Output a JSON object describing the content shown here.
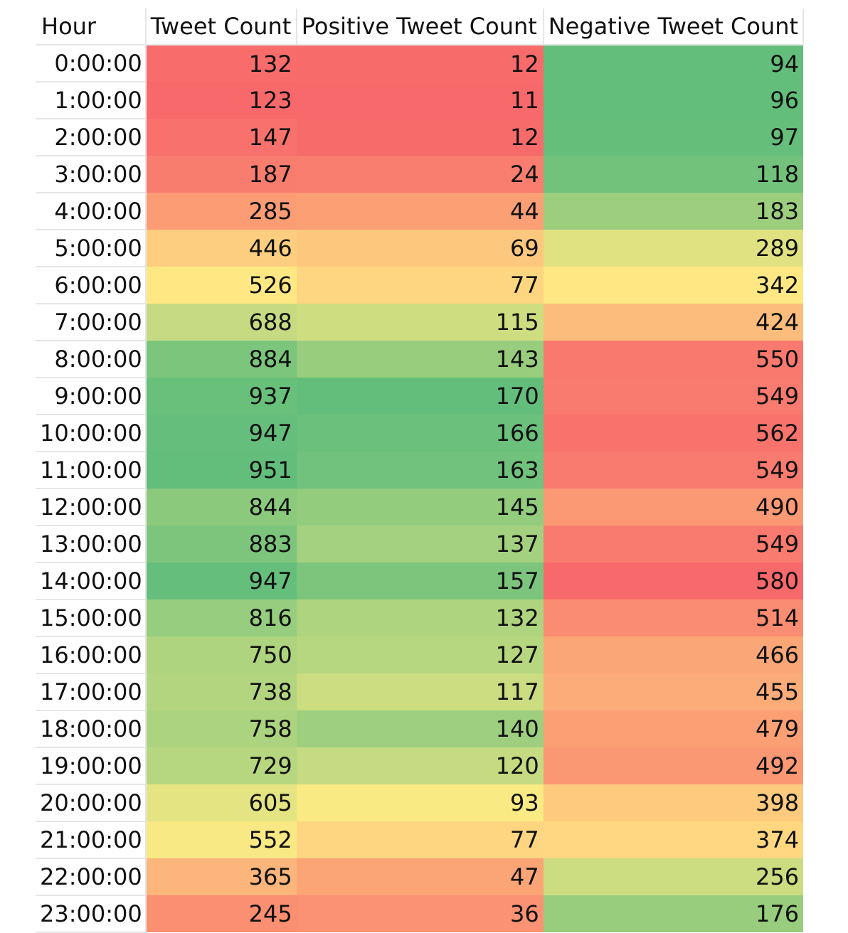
{
  "chart_data": {
    "type": "table",
    "columns": [
      "Hour",
      "Tweet Count",
      "Positive Tweet Count",
      "Negative Tweet Count"
    ],
    "color_scale": {
      "low": "#f8696b",
      "mid": "#ffeb84",
      "high": "#63be7b",
      "inverted_columns": [
        "Negative Tweet Count"
      ]
    },
    "rows": [
      [
        "0:00:00",
        132,
        12,
        94
      ],
      [
        "1:00:00",
        123,
        11,
        96
      ],
      [
        "2:00:00",
        147,
        12,
        97
      ],
      [
        "3:00:00",
        187,
        24,
        118
      ],
      [
        "4:00:00",
        285,
        44,
        183
      ],
      [
        "5:00:00",
        446,
        69,
        289
      ],
      [
        "6:00:00",
        526,
        77,
        342
      ],
      [
        "7:00:00",
        688,
        115,
        424
      ],
      [
        "8:00:00",
        884,
        143,
        550
      ],
      [
        "9:00:00",
        937,
        170,
        549
      ],
      [
        "10:00:00",
        947,
        166,
        562
      ],
      [
        "11:00:00",
        951,
        163,
        549
      ],
      [
        "12:00:00",
        844,
        145,
        490
      ],
      [
        "13:00:00",
        883,
        137,
        549
      ],
      [
        "14:00:00",
        947,
        157,
        580
      ],
      [
        "15:00:00",
        816,
        132,
        514
      ],
      [
        "16:00:00",
        750,
        127,
        466
      ],
      [
        "17:00:00",
        738,
        117,
        455
      ],
      [
        "18:00:00",
        758,
        140,
        479
      ],
      [
        "19:00:00",
        729,
        120,
        492
      ],
      [
        "20:00:00",
        605,
        93,
        398
      ],
      [
        "21:00:00",
        552,
        77,
        374
      ],
      [
        "22:00:00",
        365,
        47,
        256
      ],
      [
        "23:00:00",
        245,
        36,
        176
      ]
    ]
  }
}
